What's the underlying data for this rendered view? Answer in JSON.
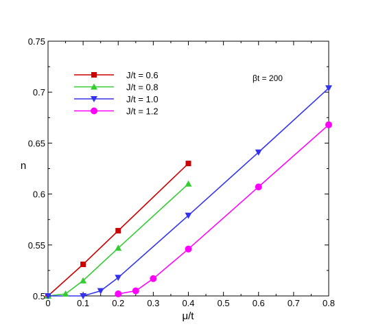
{
  "chart_data": {
    "type": "line",
    "title": "",
    "xlabel": "μ/t",
    "ylabel": "n",
    "xlim": [
      0,
      0.8
    ],
    "ylim": [
      0.5,
      0.75
    ],
    "xticks": [
      0,
      0.1,
      0.2,
      0.3,
      0.4,
      0.5,
      0.6,
      0.7,
      0.8
    ],
    "xtick_labels": [
      "0",
      "0.1",
      "0.2",
      "0.3",
      "0.4",
      "0.5",
      "0.6",
      "0.7",
      "0.8"
    ],
    "yticks": [
      0.5,
      0.55,
      0.6,
      0.65,
      0.7,
      0.75
    ],
    "ytick_labels": [
      "0.5",
      "0.55",
      "0.6",
      "0.65",
      "0.7",
      "0.75"
    ],
    "grid": false,
    "legend_position": "top-left",
    "annotation": "βt = 200",
    "series": [
      {
        "name": "J/t = 0.6",
        "color": "#cc0000",
        "marker": "square",
        "x": [
          0,
          0.1,
          0.2,
          0.4
        ],
        "y": [
          0.5,
          0.531,
          0.564,
          0.63
        ]
      },
      {
        "name": "J/t = 0.8",
        "color": "#33cc33",
        "marker": "triangle-up",
        "x": [
          0,
          0.05,
          0.1,
          0.2,
          0.4
        ],
        "y": [
          0.5,
          0.502,
          0.515,
          0.547,
          0.61
        ]
      },
      {
        "name": "J/t = 1.0",
        "color": "#3333ee",
        "marker": "triangle-down",
        "x": [
          0,
          0.1,
          0.15,
          0.2,
          0.4,
          0.6,
          0.8
        ],
        "y": [
          0.5,
          0.5,
          0.505,
          0.518,
          0.579,
          0.641,
          0.704
        ]
      },
      {
        "name": "J/t = 1.2",
        "color": "#ff00ff",
        "marker": "circle",
        "x": [
          0.2,
          0.25,
          0.3,
          0.4,
          0.6,
          0.8
        ],
        "y": [
          0.502,
          0.505,
          0.517,
          0.546,
          0.607,
          0.668
        ]
      }
    ]
  }
}
